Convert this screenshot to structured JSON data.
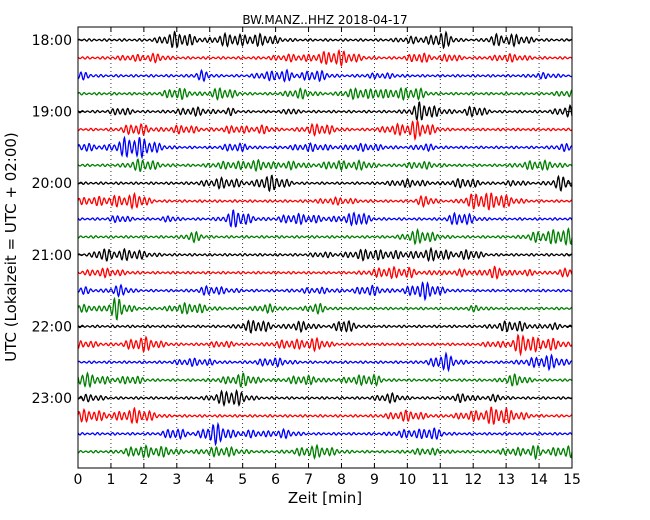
{
  "chart_data": {
    "type": "line",
    "title": "BW.MANZ..HHZ 2018-04-17",
    "xlabel": "Zeit  [min]",
    "ylabel": "UTC (Lokalzeit = UTC + 02:00)",
    "xlim": [
      0,
      15
    ],
    "x_ticks": [
      "0",
      "1",
      "2",
      "3",
      "4",
      "5",
      "6",
      "7",
      "8",
      "9",
      "10",
      "11",
      "12",
      "13",
      "14",
      "15"
    ],
    "y_ticks": [
      "18:00",
      "19:00",
      "20:00",
      "21:00",
      "22:00",
      "23:00"
    ],
    "grid": "vertical dotted lines at each minute",
    "trace_colors": [
      "#000000",
      "#ff0000",
      "#0000ff",
      "#008000"
    ],
    "trace_count": 24,
    "trace_interval_minutes": 15,
    "first_trace": "18:00",
    "last_trace": "23:45"
  }
}
